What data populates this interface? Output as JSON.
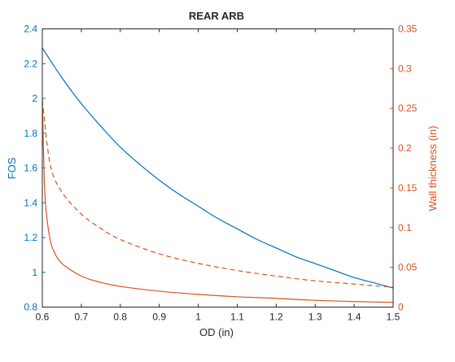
{
  "chart_data": {
    "type": "line",
    "title": "REAR ARB",
    "xlabel": "OD (in)",
    "ylabel_left": "FOS",
    "ylabel_right": "Wall thickness (in)",
    "xlim": [
      0.6,
      1.5
    ],
    "ylim_left": [
      0.8,
      2.4
    ],
    "ylim_right": [
      0,
      0.35
    ],
    "xticks": [
      "0.6",
      "0.7",
      "0.8",
      "0.9",
      "1",
      "1.1",
      "1.2",
      "1.3",
      "1.4",
      "1.5"
    ],
    "yticks_left": [
      "0.8",
      "1",
      "1.2",
      "1.4",
      "1.6",
      "1.8",
      "2",
      "2.2",
      "2.4"
    ],
    "yticks_right": [
      "0",
      "0.05",
      "0.1",
      "0.15",
      "0.2",
      "0.25",
      "0.3",
      "0.35"
    ],
    "grid": false,
    "colors": {
      "left_axis": "#0072BD",
      "right_axis": "#D95319",
      "box": "#262626"
    },
    "series": [
      {
        "axis": "left",
        "style": "solid",
        "color": "#0072BD",
        "x": [
          0.6,
          0.65,
          0.7,
          0.75,
          0.8,
          0.85,
          0.9,
          0.95,
          1.0,
          1.05,
          1.1,
          1.15,
          1.2,
          1.25,
          1.3,
          1.35,
          1.4,
          1.45,
          1.5
        ],
        "y": [
          2.29,
          2.12,
          1.97,
          1.84,
          1.72,
          1.62,
          1.53,
          1.45,
          1.38,
          1.31,
          1.25,
          1.19,
          1.14,
          1.09,
          1.05,
          1.01,
          0.97,
          0.94,
          0.91
        ]
      },
      {
        "axis": "right",
        "style": "dashed",
        "color": "#D95319",
        "x": [
          0.6,
          0.62,
          0.65,
          0.7,
          0.75,
          0.8,
          0.9,
          1.0,
          1.1,
          1.2,
          1.3,
          1.4,
          1.5
        ],
        "y": [
          0.26,
          0.18,
          0.145,
          0.117,
          0.099,
          0.085,
          0.067,
          0.055,
          0.046,
          0.039,
          0.033,
          0.029,
          0.025
        ]
      },
      {
        "axis": "right",
        "style": "solid",
        "color": "#D95319",
        "x": [
          0.6,
          0.605,
          0.61,
          0.62,
          0.63,
          0.65,
          0.7,
          0.75,
          0.8,
          0.9,
          1.0,
          1.1,
          1.2,
          1.3,
          1.4,
          1.5
        ],
        "y": [
          0.26,
          0.16,
          0.12,
          0.085,
          0.07,
          0.055,
          0.039,
          0.031,
          0.026,
          0.02,
          0.016,
          0.013,
          0.011,
          0.0085,
          0.007,
          0.006
        ]
      }
    ]
  }
}
